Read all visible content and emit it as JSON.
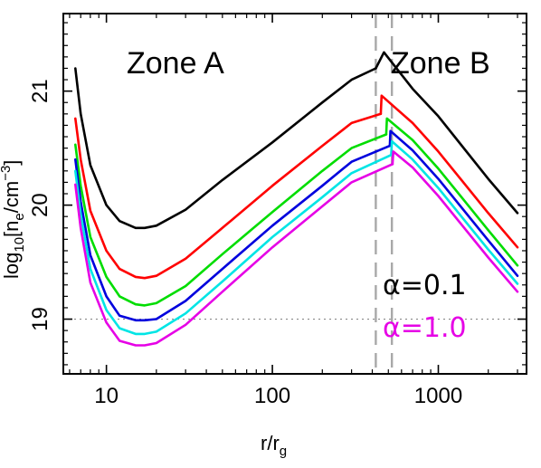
{
  "chart_data": {
    "type": "line",
    "xscale": "log",
    "xlim": [
      5.5,
      3400
    ],
    "ylim": [
      18.52,
      21.68
    ],
    "xlabel": {
      "base": "r/r",
      "sub": "g"
    },
    "ylabel": {
      "lead": "log",
      "lead_sub": "10",
      "open": "[n",
      "n_sub": "e",
      "unit": "/cm",
      "unit_sup": "−3",
      "close": "]"
    },
    "x_ticks": [
      {
        "value": 10,
        "label": "10"
      },
      {
        "value": 100,
        "label": "100"
      },
      {
        "value": 1000,
        "label": "1000"
      }
    ],
    "y_ticks": [
      {
        "value": 19,
        "label": "19"
      },
      {
        "value": 20,
        "label": "20"
      },
      {
        "value": 21,
        "label": "21"
      }
    ],
    "zone_labels": {
      "a": "Zone A",
      "b": "Zone B"
    },
    "alpha_labels": [
      {
        "text": "α=0.1",
        "color": "#000000"
      },
      {
        "text": "α=1.0",
        "color": "#e600e6"
      }
    ],
    "reference_lines": {
      "horizontal_y": 19,
      "vertical_x": [
        420,
        525
      ]
    },
    "series": [
      {
        "color": "#000000",
        "zone_a": {
          "x": [
            6.5,
            7,
            8,
            10,
            12,
            15,
            17,
            20,
            30,
            50,
            100,
            200,
            300,
            420
          ],
          "y": [
            21.2,
            20.8,
            20.35,
            20.0,
            19.86,
            19.8,
            19.8,
            19.82,
            19.96,
            20.22,
            20.55,
            20.9,
            21.1,
            21.2
          ]
        },
        "zone_b": {
          "x": [
            420,
            470,
            700,
            1000,
            2000,
            3000
          ],
          "y": [
            21.2,
            21.34,
            21.02,
            20.78,
            20.23,
            19.93
          ]
        }
      },
      {
        "color": "#ff0000",
        "zone_a": {
          "x": [
            6.5,
            7,
            8,
            10,
            12,
            15,
            17,
            20,
            30,
            50,
            100,
            200,
            300,
            450
          ],
          "y": [
            20.76,
            20.4,
            19.95,
            19.6,
            19.44,
            19.37,
            19.36,
            19.38,
            19.53,
            19.8,
            20.17,
            20.52,
            20.72,
            20.8
          ]
        },
        "zone_b": {
          "x": [
            450,
            455,
            700,
            1000,
            2000,
            3000
          ],
          "y": [
            20.8,
            20.96,
            20.72,
            20.47,
            19.93,
            19.63
          ]
        }
      },
      {
        "color": "#00dd00",
        "zone_a": {
          "x": [
            6.5,
            7,
            8,
            10,
            12,
            15,
            17,
            20,
            30,
            50,
            100,
            200,
            300,
            485
          ],
          "y": [
            20.53,
            20.17,
            19.72,
            19.37,
            19.2,
            19.13,
            19.12,
            19.14,
            19.29,
            19.57,
            19.94,
            20.3,
            20.5,
            20.62
          ]
        },
        "zone_b": {
          "x": [
            485,
            490,
            700,
            1000,
            2000,
            3000
          ],
          "y": [
            20.62,
            20.76,
            20.57,
            20.32,
            19.78,
            19.47
          ]
        }
      },
      {
        "color": "#0000dd",
        "zone_a": {
          "x": [
            6.5,
            7,
            8,
            10,
            12,
            15,
            17,
            20,
            30,
            50,
            100,
            200,
            300,
            510
          ],
          "y": [
            20.4,
            20.03,
            19.56,
            19.2,
            19.03,
            18.99,
            18.99,
            19.0,
            19.16,
            19.44,
            19.82,
            20.17,
            20.38,
            20.52
          ]
        },
        "zone_b": {
          "x": [
            510,
            515,
            700,
            1000,
            2000,
            3000
          ],
          "y": [
            20.52,
            20.65,
            20.48,
            20.23,
            19.69,
            19.38
          ]
        }
      },
      {
        "color": "#00e5e5",
        "zone_a": {
          "x": [
            6.5,
            7,
            8,
            10,
            12,
            15,
            17,
            20,
            30,
            50,
            100,
            200,
            300,
            520
          ],
          "y": [
            20.3,
            19.92,
            19.44,
            19.08,
            18.92,
            18.87,
            18.87,
            18.89,
            19.05,
            19.33,
            19.72,
            20.07,
            20.28,
            20.44
          ]
        },
        "zone_b": {
          "x": [
            520,
            525,
            700,
            1000,
            2000,
            3000
          ],
          "y": [
            20.44,
            20.56,
            20.4,
            20.15,
            19.61,
            19.31
          ]
        }
      },
      {
        "color": "#e600e6",
        "zone_a": {
          "x": [
            6.5,
            7,
            8,
            10,
            12,
            15,
            17,
            20,
            30,
            50,
            100,
            200,
            300,
            530
          ],
          "y": [
            20.18,
            19.8,
            19.32,
            18.97,
            18.81,
            18.77,
            18.77,
            18.79,
            18.95,
            19.24,
            19.63,
            19.99,
            20.2,
            20.36
          ]
        },
        "zone_b": {
          "x": [
            530,
            535,
            700,
            1000,
            2000,
            3000
          ],
          "y": [
            20.36,
            20.47,
            20.33,
            20.08,
            19.54,
            19.24
          ]
        }
      }
    ]
  }
}
